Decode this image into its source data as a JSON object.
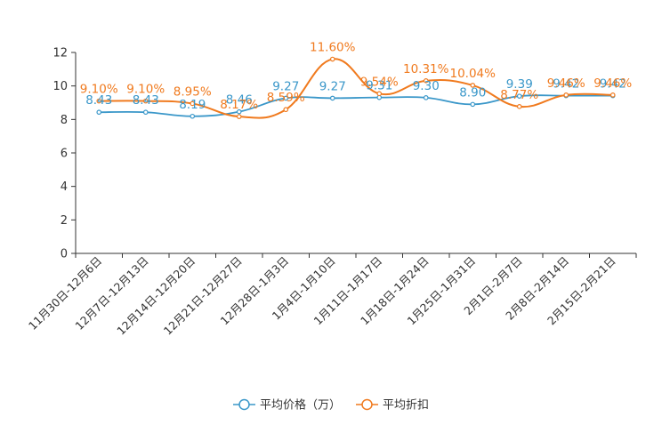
{
  "chart_data": {
    "type": "line",
    "title": "",
    "xlabel": "",
    "ylabel": "",
    "ylim": [
      0,
      12
    ],
    "yticks": [
      0,
      2,
      4,
      6,
      8,
      10,
      12
    ],
    "grid": false,
    "legend_position": "bottom",
    "categories": [
      "11月30日-12月6日",
      "12月7日-12月13日",
      "12月14日-12月20日",
      "12月21日-12月27日",
      "12月28日-1月3日",
      "1月4日-1月10日",
      "1月11日-1月17日",
      "1月18日-1月24日",
      "1月25日-1月31日",
      "2月1日-2月7日",
      "2月8日-2月14日",
      "2月15日-2月21日"
    ],
    "series": [
      {
        "name": "平均价格（万）",
        "color": "#3a97c9",
        "values": [
          8.43,
          8.43,
          8.19,
          8.46,
          9.27,
          9.27,
          9.31,
          9.3,
          8.9,
          9.39,
          9.42,
          9.42
        ],
        "labels": [
          "8.43",
          "8.43",
          "8.19",
          "8.46",
          "9.27",
          "9.27",
          "9.31",
          "9.30",
          "8.90",
          "9.39",
          "9.42",
          "9.42"
        ]
      },
      {
        "name": "平均折扣",
        "color": "#f07a1e",
        "values": [
          9.1,
          9.1,
          8.95,
          8.17,
          8.59,
          11.6,
          9.54,
          10.31,
          10.04,
          8.77,
          9.46,
          9.46
        ],
        "labels": [
          "9.10%",
          "9.10%",
          "8.95%",
          "8.17%",
          "8.59%",
          "11.60%",
          "9.54%",
          "10.31%",
          "10.04%",
          "8.77%",
          "9.46%",
          "9.46%"
        ]
      }
    ]
  }
}
